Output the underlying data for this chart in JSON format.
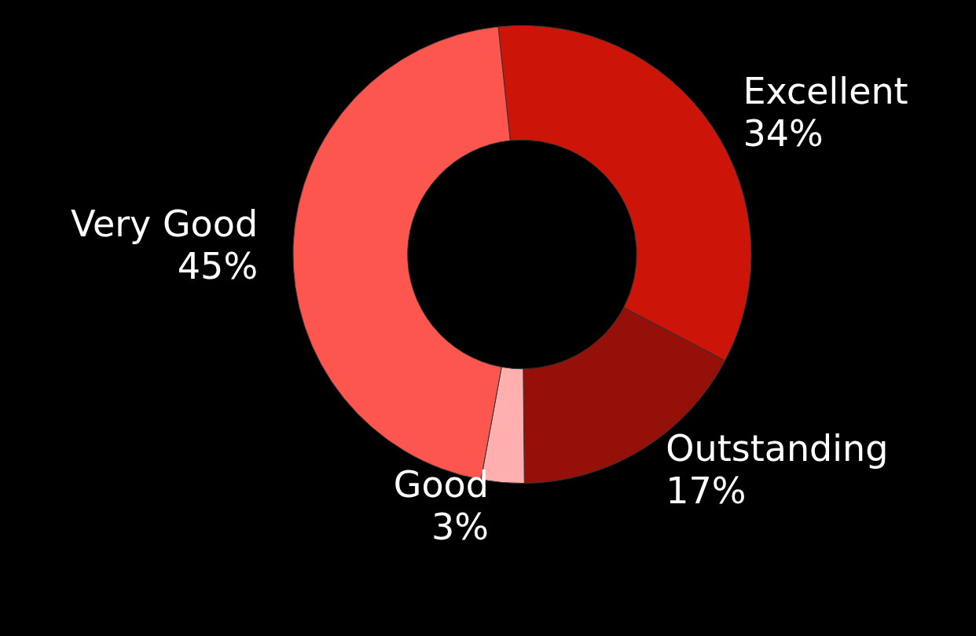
{
  "chart_data": {
    "type": "donut",
    "categories": [
      "Excellent",
      "Outstanding",
      "Good",
      "Very Good"
    ],
    "values": [
      34,
      17,
      3,
      45
    ],
    "value_labels": [
      "34%",
      "17%",
      "3%",
      "45%"
    ],
    "colors": [
      "#cc1508",
      "#941008",
      "#ffb0ae",
      "#fd564f"
    ],
    "legend": false
  }
}
